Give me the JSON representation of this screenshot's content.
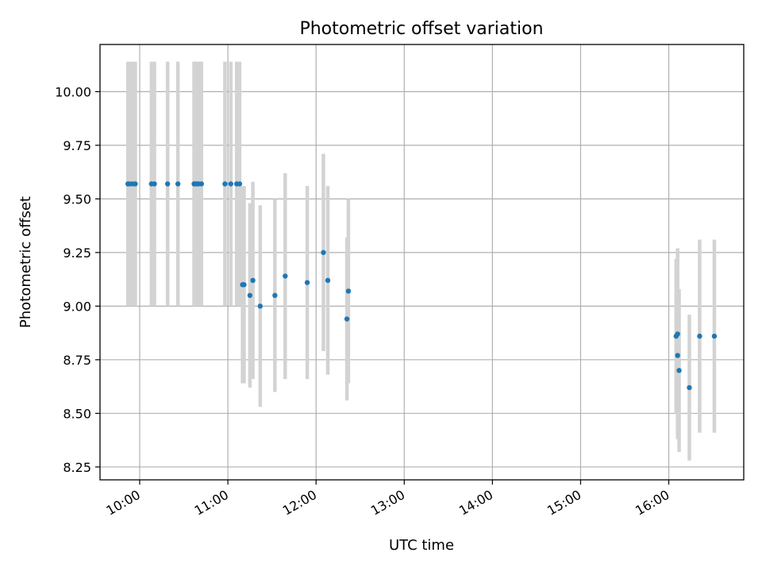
{
  "chart_data": {
    "type": "scatter",
    "title": "Photometric offset variation",
    "xlabel": "UTC time",
    "ylabel": "Photometric offset",
    "xlim": [
      "09:33",
      "16:51"
    ],
    "ylim": [
      8.19,
      10.22
    ],
    "xticks": [
      "10:00",
      "11:00",
      "12:00",
      "13:00",
      "14:00",
      "15:00",
      "16:00"
    ],
    "yticks": [
      8.25,
      8.5,
      8.75,
      9.0,
      9.25,
      9.5,
      9.75,
      10.0
    ],
    "ytick_labels": [
      "8.25",
      "8.50",
      "8.75",
      "9.00",
      "9.25",
      "9.50",
      "9.75",
      "10.00"
    ],
    "grid": true,
    "legend": "none",
    "colors": {
      "points": "#1f77b4",
      "errorbars": "#d3d3d3",
      "grid": "#b0b0b0"
    },
    "series": [
      {
        "points": [
          {
            "x": "09:52",
            "y": 9.57,
            "yerr": 0.57
          },
          {
            "x": "09:53",
            "y": 9.57,
            "yerr": 0.57
          },
          {
            "x": "09:55",
            "y": 9.57,
            "yerr": 0.57
          },
          {
            "x": "09:57",
            "y": 9.57,
            "yerr": 0.57
          },
          {
            "x": "10:08",
            "y": 9.57,
            "yerr": 0.57
          },
          {
            "x": "10:10",
            "y": 9.57,
            "yerr": 0.57
          },
          {
            "x": "10:19",
            "y": 9.57,
            "yerr": 0.57
          },
          {
            "x": "10:26",
            "y": 9.57,
            "yerr": 0.57
          },
          {
            "x": "10:37",
            "y": 9.57,
            "yerr": 0.57
          },
          {
            "x": "10:38",
            "y": 9.57,
            "yerr": 0.57
          },
          {
            "x": "10:39",
            "y": 9.57,
            "yerr": 0.57
          },
          {
            "x": "10:40",
            "y": 9.57,
            "yerr": 0.57
          },
          {
            "x": "10:42",
            "y": 9.57,
            "yerr": 0.57
          },
          {
            "x": "10:58",
            "y": 9.57,
            "yerr": 0.57
          },
          {
            "x": "11:02",
            "y": 9.57,
            "yerr": 0.57
          },
          {
            "x": "11:06",
            "y": 9.57,
            "yerr": 0.57
          },
          {
            "x": "11:08",
            "y": 9.57,
            "yerr": 0.57
          },
          {
            "x": "11:10",
            "y": 9.1,
            "yerr": 0.46
          },
          {
            "x": "11:11",
            "y": 9.1,
            "yerr": 0.46
          },
          {
            "x": "11:15",
            "y": 9.05,
            "yerr": 0.43
          },
          {
            "x": "11:17",
            "y": 9.12,
            "yerr": 0.46
          },
          {
            "x": "11:22",
            "y": 9.0,
            "yerr": 0.47
          },
          {
            "x": "11:32",
            "y": 9.05,
            "yerr": 0.45
          },
          {
            "x": "11:39",
            "y": 9.14,
            "yerr": 0.48
          },
          {
            "x": "11:54",
            "y": 9.11,
            "yerr": 0.45
          },
          {
            "x": "12:05",
            "y": 9.25,
            "yerr": 0.46
          },
          {
            "x": "12:08",
            "y": 9.12,
            "yerr": 0.44
          },
          {
            "x": "12:21",
            "y": 8.94,
            "yerr": 0.38
          },
          {
            "x": "12:22",
            "y": 9.07,
            "yerr": 0.43
          },
          {
            "x": "16:05",
            "y": 8.86,
            "yerr": 0.36
          },
          {
            "x": "16:06",
            "y": 8.87,
            "yerr": 0.4
          },
          {
            "x": "16:06",
            "y": 8.77,
            "yerr": 0.39
          },
          {
            "x": "16:07",
            "y": 8.7,
            "yerr": 0.38
          },
          {
            "x": "16:14",
            "y": 8.62,
            "yerr": 0.34
          },
          {
            "x": "16:21",
            "y": 8.86,
            "yerr": 0.45
          },
          {
            "x": "16:31",
            "y": 8.86,
            "yerr": 0.45
          }
        ]
      }
    ]
  }
}
